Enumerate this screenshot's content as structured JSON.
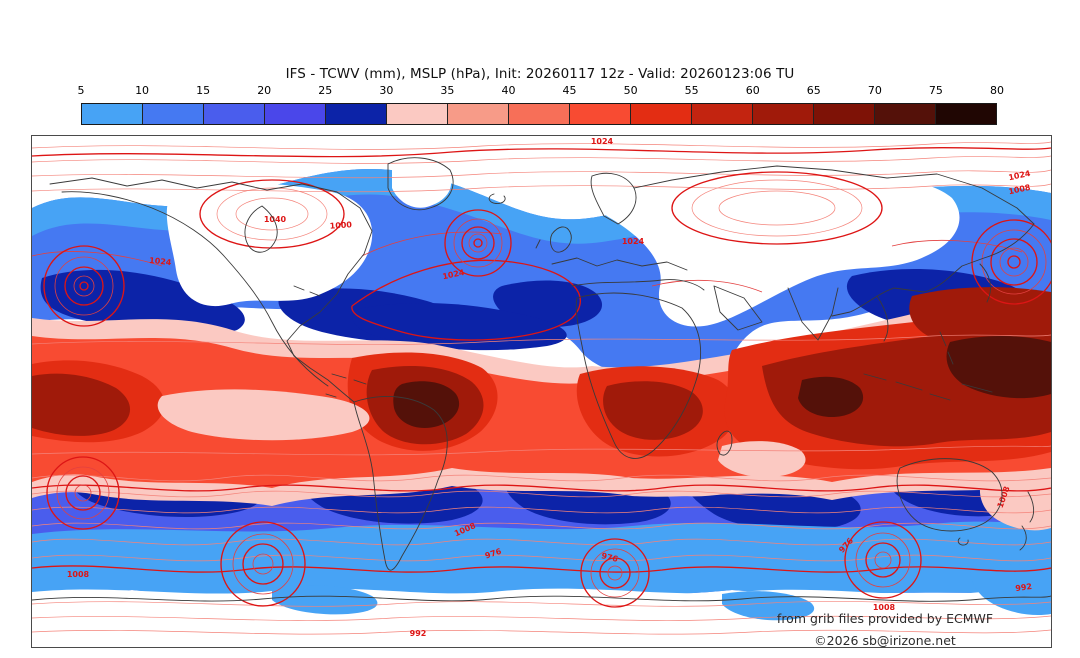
{
  "title": "IFS - TCWV (mm), MSLP (hPa), Init: 20260117 12z - Valid: 20260123:06 TU",
  "colorbar": {
    "unit": "mm",
    "ticks": [
      "5",
      "10",
      "15",
      "20",
      "25",
      "30",
      "35",
      "40",
      "45",
      "50",
      "55",
      "60",
      "65",
      "70",
      "75",
      "80"
    ],
    "segments": [
      {
        "range": "5-10",
        "color": "#47a3f5"
      },
      {
        "range": "10-15",
        "color": "#4579f2"
      },
      {
        "range": "15-20",
        "color": "#4a5ded"
      },
      {
        "range": "20-25",
        "color": "#4a47ea"
      },
      {
        "range": "25-30",
        "color": "#0c23a8"
      },
      {
        "range": "30-35",
        "color": "#fbc9c2"
      },
      {
        "range": "35-40",
        "color": "#f79b88"
      },
      {
        "range": "40-45",
        "color": "#f76f58"
      },
      {
        "range": "45-50",
        "color": "#f84b32"
      },
      {
        "range": "50-55",
        "color": "#e32d13"
      },
      {
        "range": "55-60",
        "color": "#c32410"
      },
      {
        "range": "60-65",
        "color": "#a01a0a"
      },
      {
        "range": "65-70",
        "color": "#7e1206"
      },
      {
        "range": "70-75",
        "color": "#541109"
      },
      {
        "range": "75-80",
        "color": "#200603"
      }
    ]
  },
  "map": {
    "contour_color": "#dd1515",
    "coastline_color": "#3a3a3a",
    "contour_labels": [
      "1024",
      "1024",
      "1008",
      "1024",
      "1040",
      "1024",
      "1000",
      "1024",
      "1008",
      "992",
      "976",
      "1008",
      "976",
      "976",
      "1008",
      "992",
      "1008"
    ],
    "attribution_line1": "from grib files provided by ECMWF",
    "attribution_line2": "©2026 sb@irizone.net"
  },
  "chart_data": {
    "type": "heatmap",
    "title": "IFS - TCWV (mm), MSLP (hPa), Init: 20260117 12z - Valid: 20260123:06 TU",
    "field": "TCWV",
    "field_unit": "mm",
    "overlay_field": "MSLP",
    "overlay_unit": "hPa",
    "colorbar_ticks": [
      5,
      10,
      15,
      20,
      25,
      30,
      35,
      40,
      45,
      50,
      55,
      60,
      65,
      70,
      75,
      80
    ],
    "colorbar_colors": [
      "#47a3f5",
      "#4579f2",
      "#4a5ded",
      "#4a47ea",
      "#0c23a8",
      "#fbc9c2",
      "#f79b88",
      "#f76f58",
      "#f84b32",
      "#e32d13",
      "#c32410",
      "#a01a0a",
      "#7e1206",
      "#541109",
      "#200603"
    ],
    "mslp_labels_visible": [
      1040,
      1024,
      1008,
      1000,
      992,
      976
    ],
    "legend_position": "top"
  }
}
